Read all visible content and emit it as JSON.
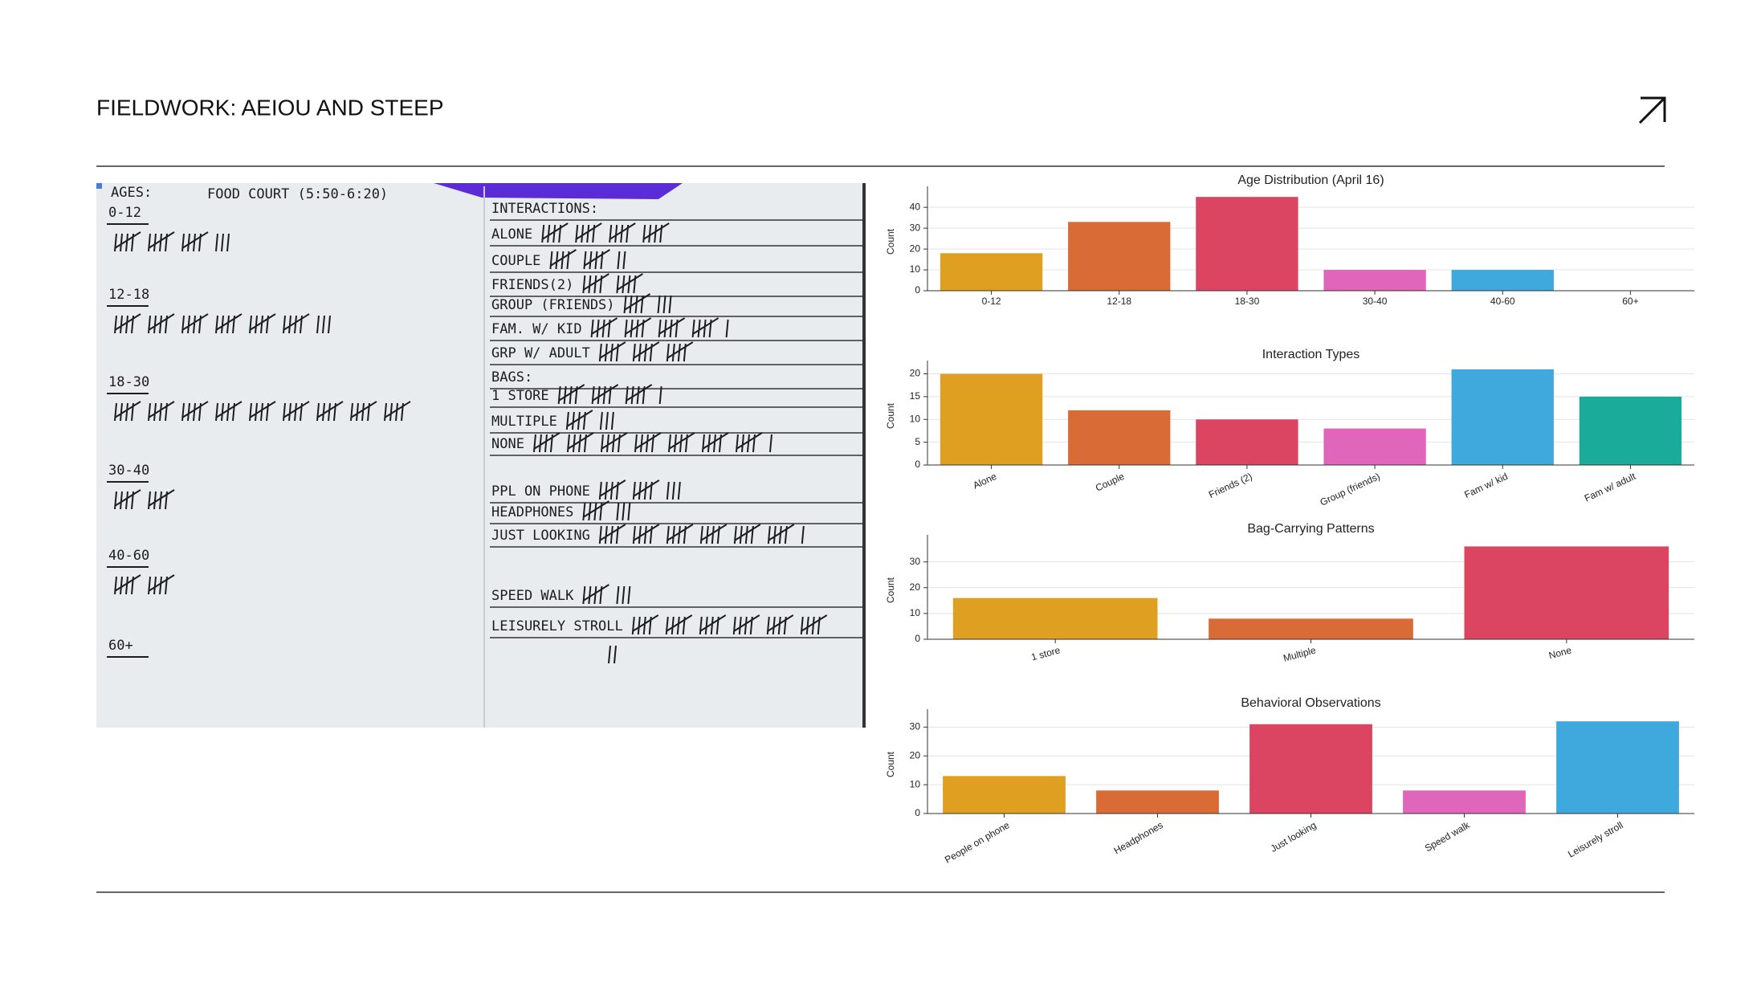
{
  "header": {
    "title": "FIELDWORK: AEIOU AND STEEP"
  },
  "notes": {
    "heading": "AGES:",
    "location": "FOOD COURT (5:50-6:20)",
    "left": [
      {
        "label": "0-12",
        "tally": 18
      },
      {
        "label": "12-18",
        "tally": 33
      },
      {
        "label": "18-30",
        "tally": 45
      },
      {
        "label": "30-40",
        "tally": 10
      },
      {
        "label": "40-60",
        "tally": 10
      },
      {
        "label": "60+"
      }
    ],
    "right": [
      {
        "label": "INTERACTIONS:"
      },
      {
        "label": "ALONE",
        "tally": 20
      },
      {
        "label": "COUPLE",
        "tally": 12
      },
      {
        "label": "FRIENDS(2)",
        "tally": 10
      },
      {
        "label": "GROUP (FRIENDS)",
        "tally": 8
      },
      {
        "label": "FAM. W/ KID",
        "tally": 21
      },
      {
        "label": "GRP W/ ADULT",
        "tally": 15
      },
      {
        "label": "BAGS:"
      },
      {
        "label": "1 STORE",
        "tally": 16
      },
      {
        "label": "MULTIPLE",
        "tally": 8
      },
      {
        "label": "NONE",
        "tally": 36
      },
      {
        "label": "PPL ON PHONE",
        "tally": 13
      },
      {
        "label": "HEADPHONES",
        "tally": 8
      },
      {
        "label": "JUST LOOKING",
        "tally": 31
      },
      {
        "label": "SPEED WALK",
        "tally": 8
      },
      {
        "label": "LEISURELY STROLL",
        "tally": 32
      }
    ]
  },
  "chart_data": [
    {
      "type": "bar",
      "title": "Age Distribution (April 16)",
      "y_label": "Count",
      "categories": [
        "0-12",
        "12-18",
        "18-30",
        "30-40",
        "40-60",
        "60+"
      ],
      "values": [
        18,
        33,
        45,
        10,
        10,
        0
      ],
      "colors": [
        "#dfa021",
        "#d96b36",
        "#dc4562",
        "#e066bb",
        "#3fa9de",
        "#1aab9b"
      ],
      "ylim": [
        0,
        47
      ],
      "yticks": [
        0,
        10,
        20,
        30,
        40
      ],
      "grid": true,
      "xtick_rotation": 0
    },
    {
      "type": "bar",
      "title": "Interaction Types",
      "y_label": "Count",
      "categories": [
        "Alone",
        "Couple",
        "Friends (2)",
        "Group (friends)",
        "Fam w/ kid",
        "Fam w/ adult"
      ],
      "values": [
        20,
        12,
        10,
        8,
        21,
        15
      ],
      "colors": [
        "#dfa021",
        "#d96b36",
        "#dc4562",
        "#e066bb",
        "#3fa9de",
        "#1aab9b"
      ],
      "ylim": [
        0,
        21.5
      ],
      "yticks": [
        0,
        5,
        10,
        15,
        20
      ],
      "grid": true,
      "xtick_rotation": -25
    },
    {
      "type": "bar",
      "title": "Bag-Carrying Patterns",
      "y_label": "Count",
      "categories": [
        "1 store",
        "Multiple",
        "None"
      ],
      "values": [
        16,
        8,
        36
      ],
      "colors": [
        "#dfa021",
        "#d96b36",
        "#dc4562"
      ],
      "ylim": [
        0,
        38
      ],
      "yticks": [
        0,
        10,
        20,
        30
      ],
      "grid": true,
      "xtick_rotation": -15
    },
    {
      "type": "bar",
      "title": "Behavioral Observations",
      "y_label": "Count",
      "categories": [
        "People on phone",
        "Headphones",
        "Just looking",
        "Speed walk",
        "Leisurely stroll"
      ],
      "values": [
        13,
        8,
        31,
        8,
        32
      ],
      "colors": [
        "#dfa021",
        "#d96b36",
        "#dc4562",
        "#e066bb",
        "#3fa9de"
      ],
      "ylim": [
        0,
        34
      ],
      "yticks": [
        0,
        10,
        20,
        30
      ],
      "grid": true,
      "xtick_rotation": -30
    }
  ]
}
